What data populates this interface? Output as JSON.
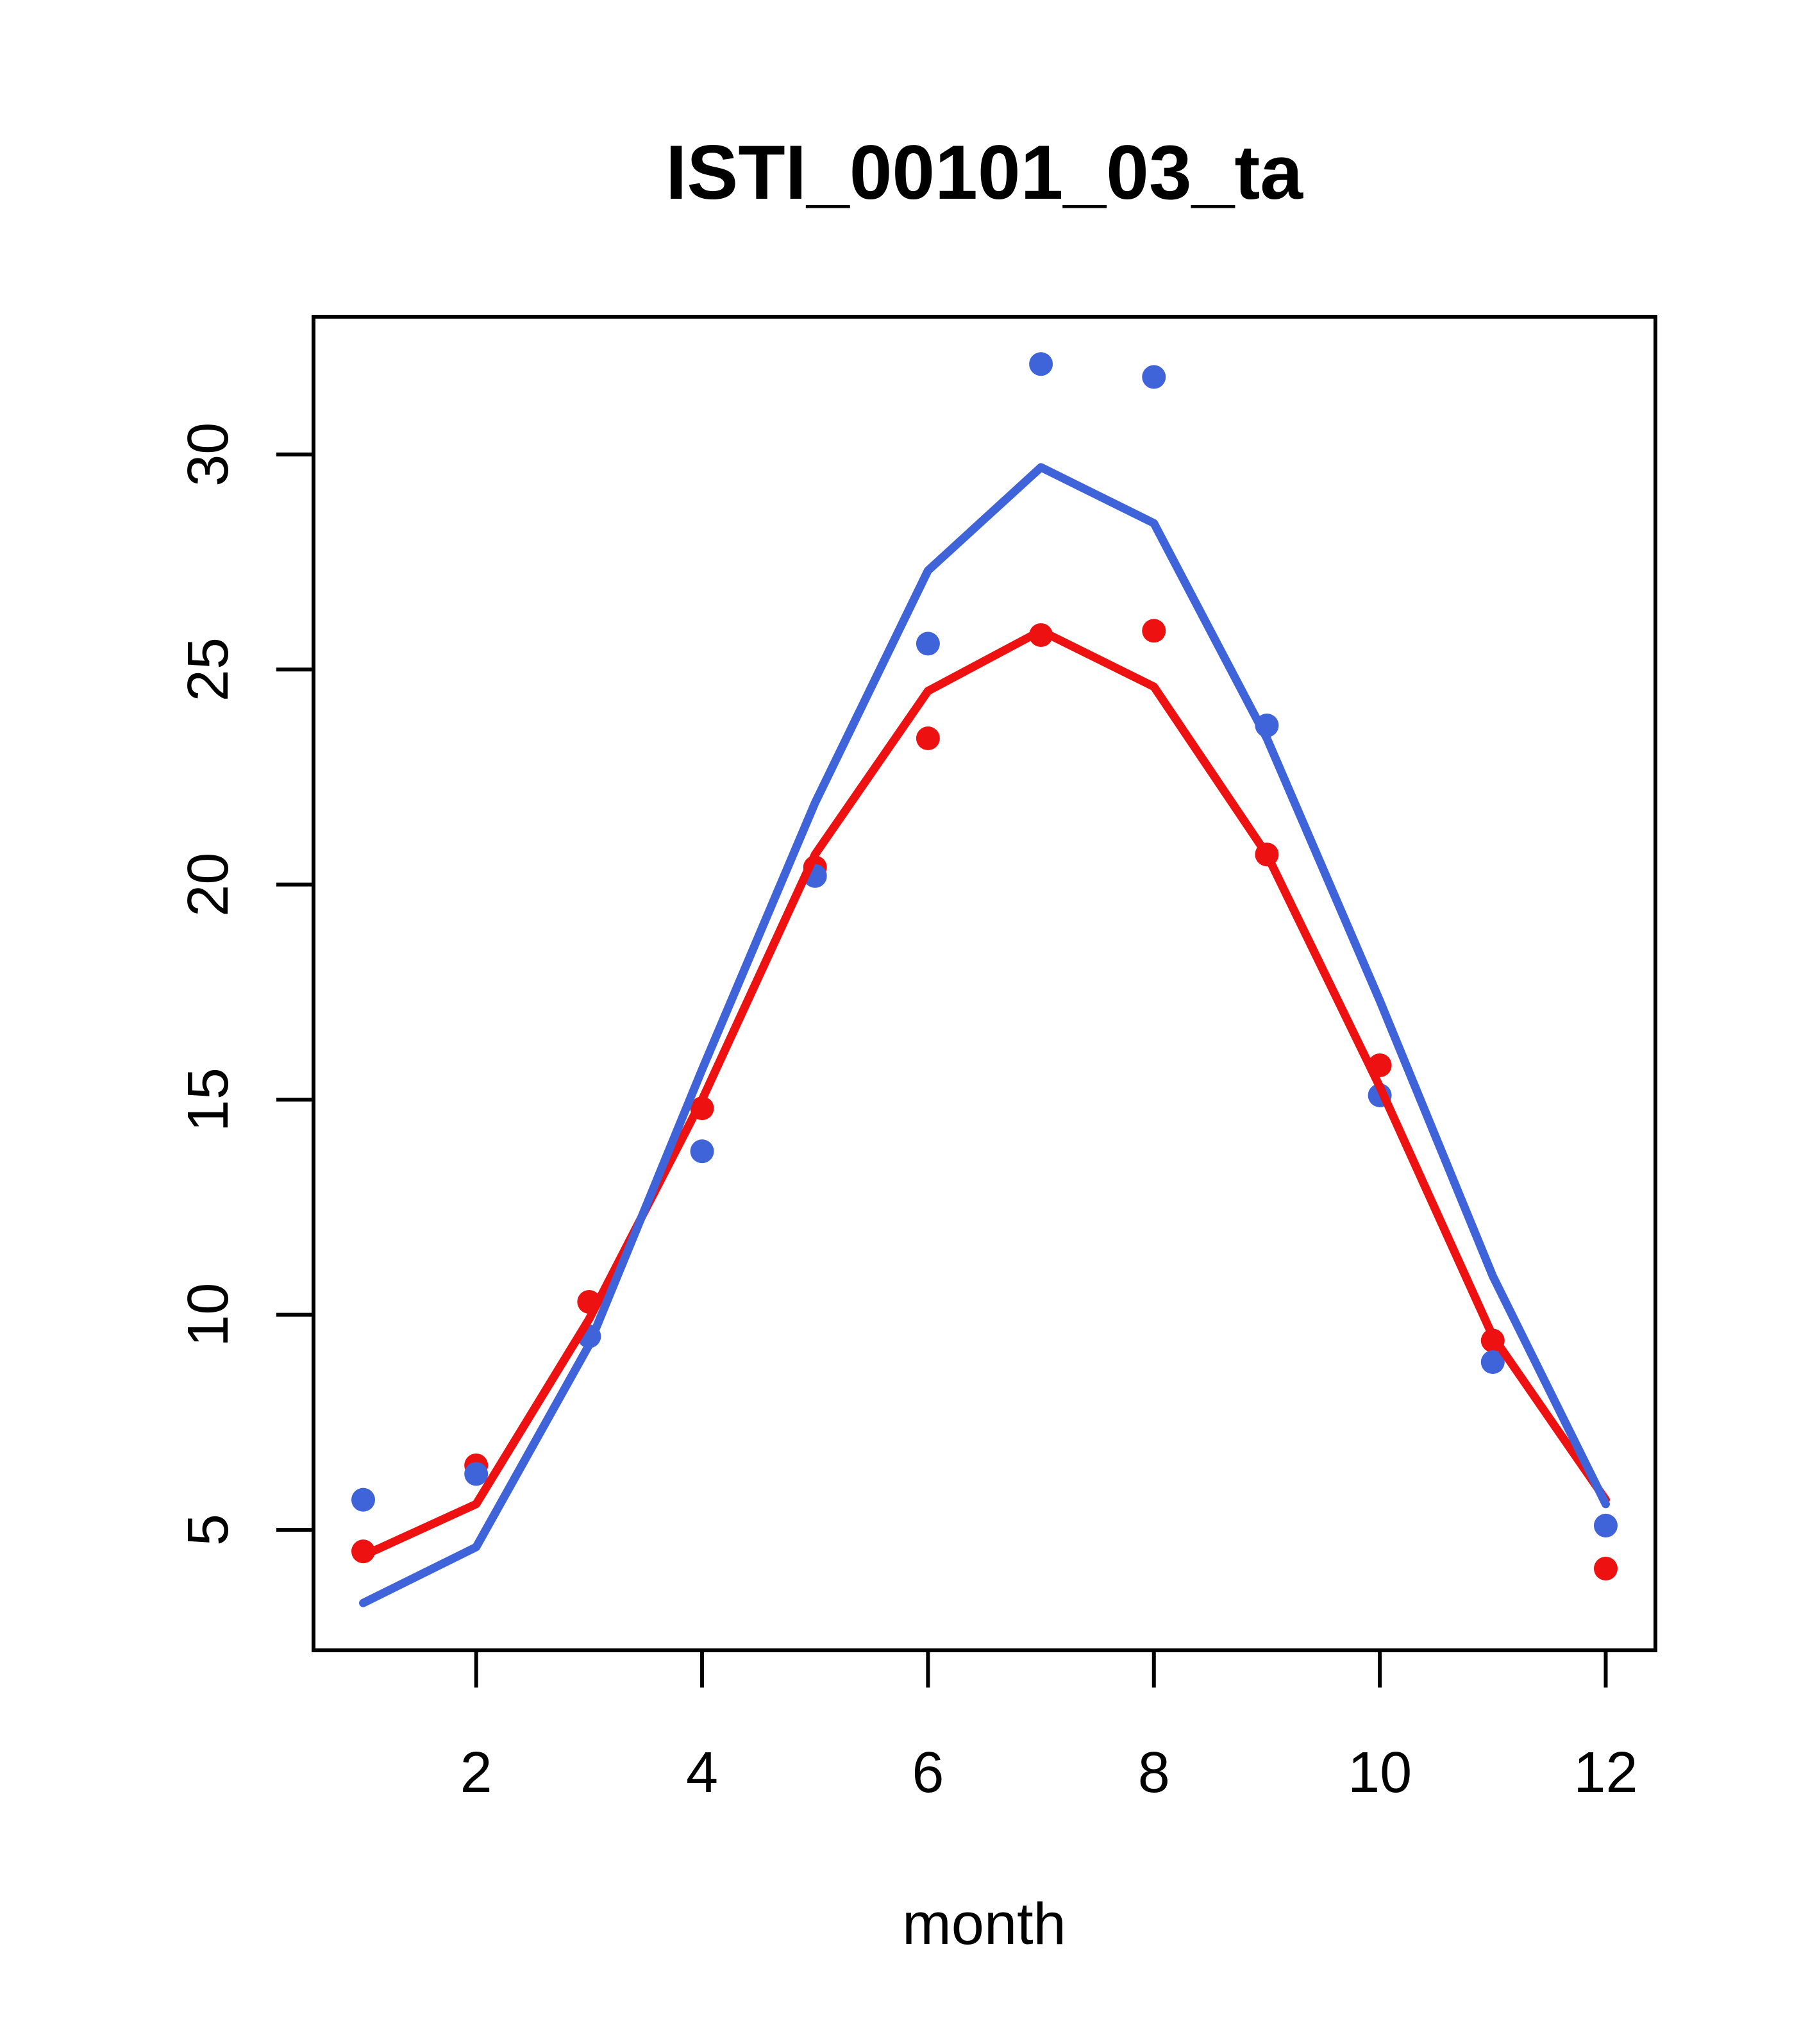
{
  "title": "ISTI_00101_03_ta",
  "xlabel": "month",
  "colors": {
    "blue": "#3f63d8",
    "red": "#ee1111",
    "axis": "#000000",
    "background": "#ffffff"
  },
  "chart_data": {
    "type": "line+scatter",
    "title": "ISTI_00101_03_ta",
    "xlabel": "month",
    "ylabel": "",
    "x": [
      1,
      2,
      3,
      4,
      5,
      6,
      7,
      8,
      9,
      10,
      11,
      12
    ],
    "xticks": [
      2,
      4,
      6,
      8,
      10,
      12
    ],
    "yticks": [
      5,
      10,
      15,
      20,
      25,
      30
    ],
    "xlim": [
      0.56,
      12.44
    ],
    "ylim": [
      2.2,
      33.2
    ],
    "grid": false,
    "legend": "none",
    "series": [
      {
        "name": "red-points",
        "kind": "scatter",
        "color": "#ee1111",
        "values": [
          4.5,
          6.5,
          10.3,
          14.8,
          20.4,
          23.4,
          25.8,
          25.9,
          20.7,
          15.8,
          9.4,
          4.1
        ]
      },
      {
        "name": "blue-points",
        "kind": "scatter",
        "color": "#3f63d8",
        "values": [
          5.7,
          6.3,
          9.5,
          13.8,
          20.2,
          25.6,
          32.1,
          31.8,
          23.7,
          15.1,
          8.9,
          5.1
        ]
      },
      {
        "name": "red-line",
        "kind": "line",
        "color": "#ee1111",
        "values": [
          4.4,
          5.6,
          9.9,
          15.0,
          20.7,
          24.5,
          25.9,
          24.6,
          20.7,
          15.3,
          9.5,
          5.7
        ]
      },
      {
        "name": "blue-line",
        "kind": "line",
        "color": "#3f63d8",
        "values": [
          3.3,
          4.6,
          9.3,
          15.7,
          21.9,
          27.3,
          29.7,
          28.4,
          23.4,
          17.3,
          10.9,
          5.6
        ]
      }
    ]
  }
}
